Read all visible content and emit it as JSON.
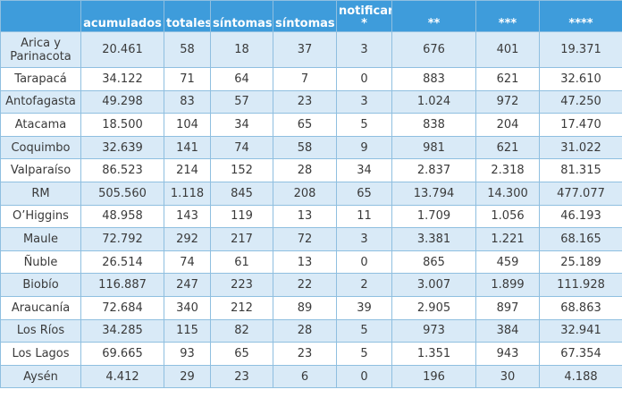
{
  "header": {
    "columns": [
      "",
      "acumulados",
      "totales",
      "síntomas",
      "síntomas",
      "notificar\n*",
      "**",
      "***",
      "****"
    ]
  },
  "rows": [
    {
      "region": "Arica y Parinacota",
      "c1": "20.461",
      "c2": "58",
      "c3": "18",
      "c4": "37",
      "c5": "3",
      "c6": "676",
      "c7": "401",
      "c8": "19.371"
    },
    {
      "region": "Tarapacá",
      "c1": "34.122",
      "c2": "71",
      "c3": "64",
      "c4": "7",
      "c5": "0",
      "c6": "883",
      "c7": "621",
      "c8": "32.610"
    },
    {
      "region": "Antofagasta",
      "c1": "49.298",
      "c2": "83",
      "c3": "57",
      "c4": "23",
      "c5": "3",
      "c6": "1.024",
      "c7": "972",
      "c8": "47.250"
    },
    {
      "region": "Atacama",
      "c1": "18.500",
      "c2": "104",
      "c3": "34",
      "c4": "65",
      "c5": "5",
      "c6": "838",
      "c7": "204",
      "c8": "17.470"
    },
    {
      "region": "Coquimbo",
      "c1": "32.639",
      "c2": "141",
      "c3": "74",
      "c4": "58",
      "c5": "9",
      "c6": "981",
      "c7": "621",
      "c8": "31.022"
    },
    {
      "region": "Valparaíso",
      "c1": "86.523",
      "c2": "214",
      "c3": "152",
      "c4": "28",
      "c5": "34",
      "c6": "2.837",
      "c7": "2.318",
      "c8": "81.315"
    },
    {
      "region": "RM",
      "c1": "505.560",
      "c2": "1.118",
      "c3": "845",
      "c4": "208",
      "c5": "65",
      "c6": "13.794",
      "c7": "14.300",
      "c8": "477.077"
    },
    {
      "region": "O’Higgins",
      "c1": "48.958",
      "c2": "143",
      "c3": "119",
      "c4": "13",
      "c5": "11",
      "c6": "1.709",
      "c7": "1.056",
      "c8": "46.193"
    },
    {
      "region": "Maule",
      "c1": "72.792",
      "c2": "292",
      "c3": "217",
      "c4": "72",
      "c5": "3",
      "c6": "3.381",
      "c7": "1.221",
      "c8": "68.165"
    },
    {
      "region": "Ñuble",
      "c1": "26.514",
      "c2": "74",
      "c3": "61",
      "c4": "13",
      "c5": "0",
      "c6": "865",
      "c7": "459",
      "c8": "25.189"
    },
    {
      "region": "Biobío",
      "c1": "116.887",
      "c2": "247",
      "c3": "223",
      "c4": "22",
      "c5": "2",
      "c6": "3.007",
      "c7": "1.899",
      "c8": "111.928"
    },
    {
      "region": "Araucanía",
      "c1": "72.684",
      "c2": "340",
      "c3": "212",
      "c4": "89",
      "c5": "39",
      "c6": "2.905",
      "c7": "897",
      "c8": "68.863"
    },
    {
      "region": "Los Ríos",
      "c1": "34.285",
      "c2": "115",
      "c3": "82",
      "c4": "28",
      "c5": "5",
      "c6": "973",
      "c7": "384",
      "c8": "32.941"
    },
    {
      "region": "Los Lagos",
      "c1": "69.665",
      "c2": "93",
      "c3": "65",
      "c4": "23",
      "c5": "5",
      "c6": "1.351",
      "c7": "943",
      "c8": "67.354"
    },
    {
      "region": "Aysén",
      "c1": "4.412",
      "c2": "29",
      "c3": "23",
      "c4": "6",
      "c5": "0",
      "c6": "196",
      "c7": "30",
      "c8": "4.188"
    }
  ],
  "colors": {
    "header_bg": "#3e9cdb",
    "row_alt_bg": "#d9eaf7",
    "border": "#8fbfe0"
  }
}
